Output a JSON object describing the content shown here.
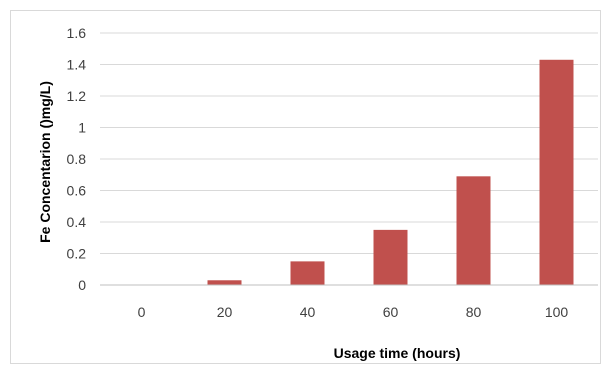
{
  "chart_data": {
    "type": "bar",
    "categories": [
      "0",
      "20",
      "40",
      "60",
      "80",
      "100"
    ],
    "values": [
      0,
      0.03,
      0.15,
      0.35,
      0.69,
      1.43
    ],
    "xlabel": "Usage time (hours)",
    "ylabel": "Fe Concentarion ()mg/L)",
    "ylim": [
      0,
      1.6
    ],
    "yticks": [
      "0",
      "0.2",
      "0.4",
      "0.6",
      "0.8",
      "1",
      "1.2",
      "1.4",
      "1.6"
    ],
    "grid": "horizontal",
    "legend": "none",
    "bar_color": "#c0504d"
  }
}
